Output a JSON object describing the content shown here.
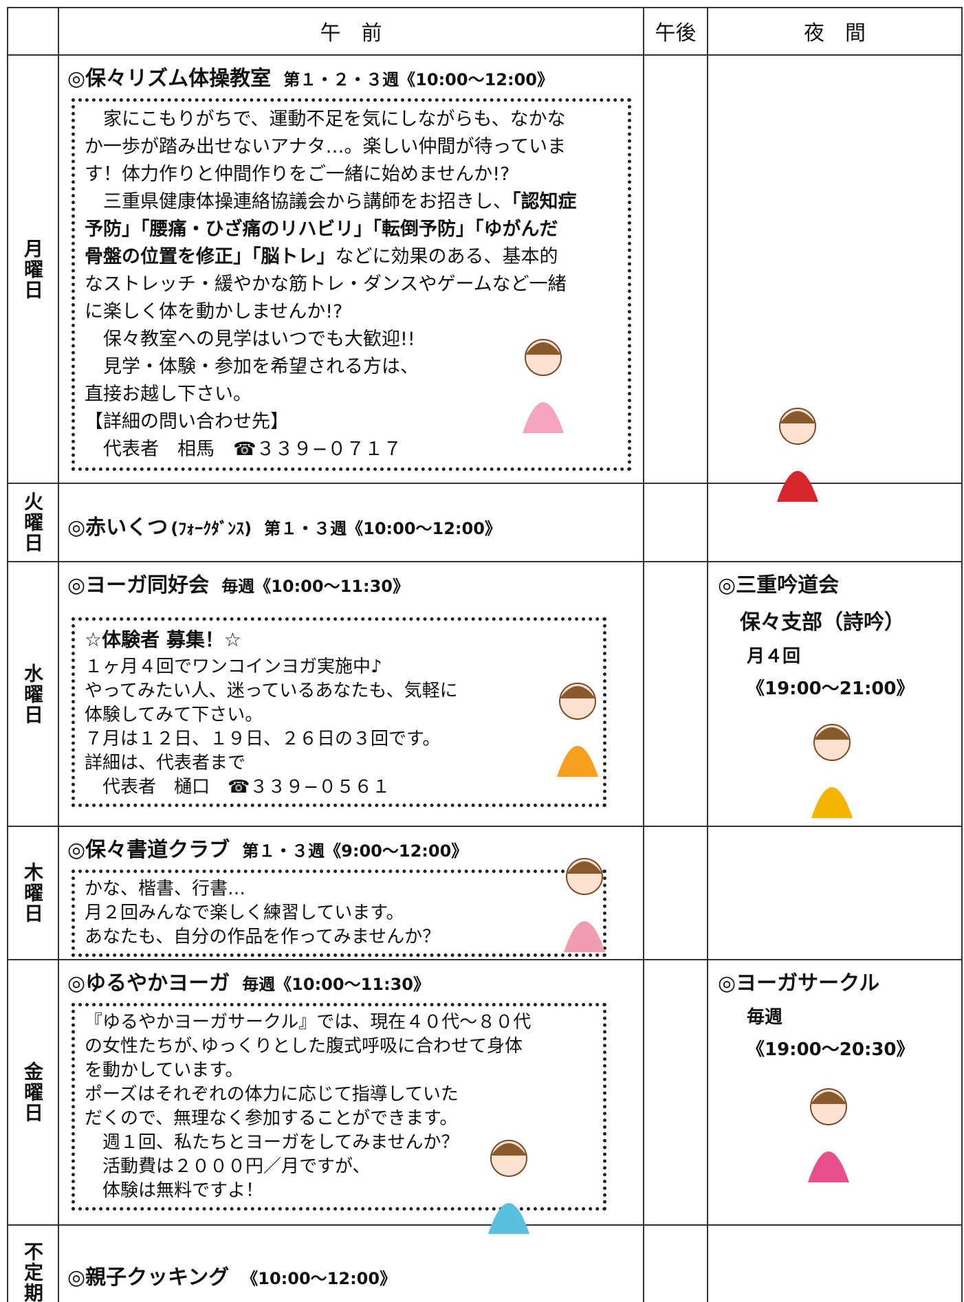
{
  "header": {
    "am": "午　前",
    "pm": "午後",
    "night": "夜　間"
  },
  "rows": [
    {
      "day": "月曜日",
      "am": {
        "title": "◎保々リズム体操教室",
        "schedule": "第１・２・３週《10:00〜12:00》",
        "lines": [
          [
            "　家にこもりがちで、運動不足を気にしながらも、なかな"
          ],
          [
            "か一歩が踏み出せないアナタ…。楽しい仲間が待っていま"
          ],
          [
            "す！体力作りと仲間作りをご一緒に始めませんか!?"
          ],
          [
            "　三重県健康体操連絡協議会から講師をお招きし、",
            {
              "t": "「認知症",
              "b": true
            }
          ],
          [
            {
              "t": "予防」「腰痛・ひざ痛のリハビリ」「転倒予防」「ゆがんだ",
              "b": true
            }
          ],
          [
            {
              "t": "骨盤の位置を修正」「脳トレ」",
              "b": true
            },
            "などに効果のある、基本的"
          ],
          [
            "なストレッチ・緩やかな筋トレ・ダンスやゲームなど一緒"
          ],
          [
            "に楽しく体を動かしませんか!?"
          ],
          [
            "　保々教室への見学はいつでも大歓迎!!"
          ],
          [
            "　見学・体験・参加を希望される方は、"
          ],
          [
            "直接お越し下さい。"
          ],
          [
            "【詳細の問い合わせ先】"
          ],
          [
            "　代表者　相馬　☎３３９−０７１７"
          ]
        ]
      }
    },
    {
      "day": "火曜日",
      "am": {
        "title": "◎赤いくつ",
        "note": "(ﾌｫｰｸﾀﾞﾝｽ)",
        "schedule": "第１・３週《10:00〜12:00》"
      }
    },
    {
      "day": "水曜日",
      "am": {
        "title": "◎ヨーガ同好会",
        "schedule": "毎週《10:00〜11:30》",
        "heading": "☆体験者 募集！☆",
        "lines": [
          [
            "１ヶ月４回でワンコインヨガ実施中♪"
          ],
          [
            "やってみたい人、迷っているあなたも、気軽に"
          ],
          [
            "体験してみて下さい。"
          ],
          [
            "７月は１２日、１９日、２６日の３回です。"
          ],
          [
            "詳細は、代表者まで"
          ],
          [
            "　代表者　樋口　☎３３９−０５６１"
          ]
        ]
      },
      "night": [
        "◎三重吟道会",
        "保々支部（詩吟）",
        "月４回",
        "《19:00〜21:00》"
      ]
    },
    {
      "day": "木曜日",
      "am": {
        "title": "◎保々書道クラブ",
        "schedule": "第１・３週《9:00〜12:00》",
        "lines": [
          [
            "かな、楷書、行書…"
          ],
          [
            "月２回みんなで楽しく練習しています。"
          ],
          [
            "あなたも、自分の作品を作ってみませんか？"
          ]
        ]
      }
    },
    {
      "day": "金曜日",
      "am": {
        "title": "◎ゆるやかヨーガ",
        "schedule": "毎週《10:00〜11:30》",
        "lines": [
          [
            "『ゆるやかヨーガサークル』では、現在４０代〜８０代"
          ],
          [
            "の女性たちが､ゆっくりとした腹式呼吸に合わせて身体"
          ],
          [
            "を動かしています。"
          ],
          [
            "ポーズはそれぞれの体力に応じて指導していた"
          ],
          [
            "だくので、無理なく参加することができます。"
          ],
          [
            "　週１回、私たちとヨーガをしてみませんか？"
          ],
          [
            "　活動費は２０００円／月ですが、"
          ],
          [
            "　体験は無料ですよ！"
          ]
        ]
      },
      "night": [
        "◎ヨーガサークル",
        "毎週",
        "《19:00〜20:30》"
      ]
    },
    {
      "day": "不定期",
      "am": {
        "title": "◎親子クッキング",
        "schedule": "《10:00〜12:00》"
      }
    }
  ]
}
